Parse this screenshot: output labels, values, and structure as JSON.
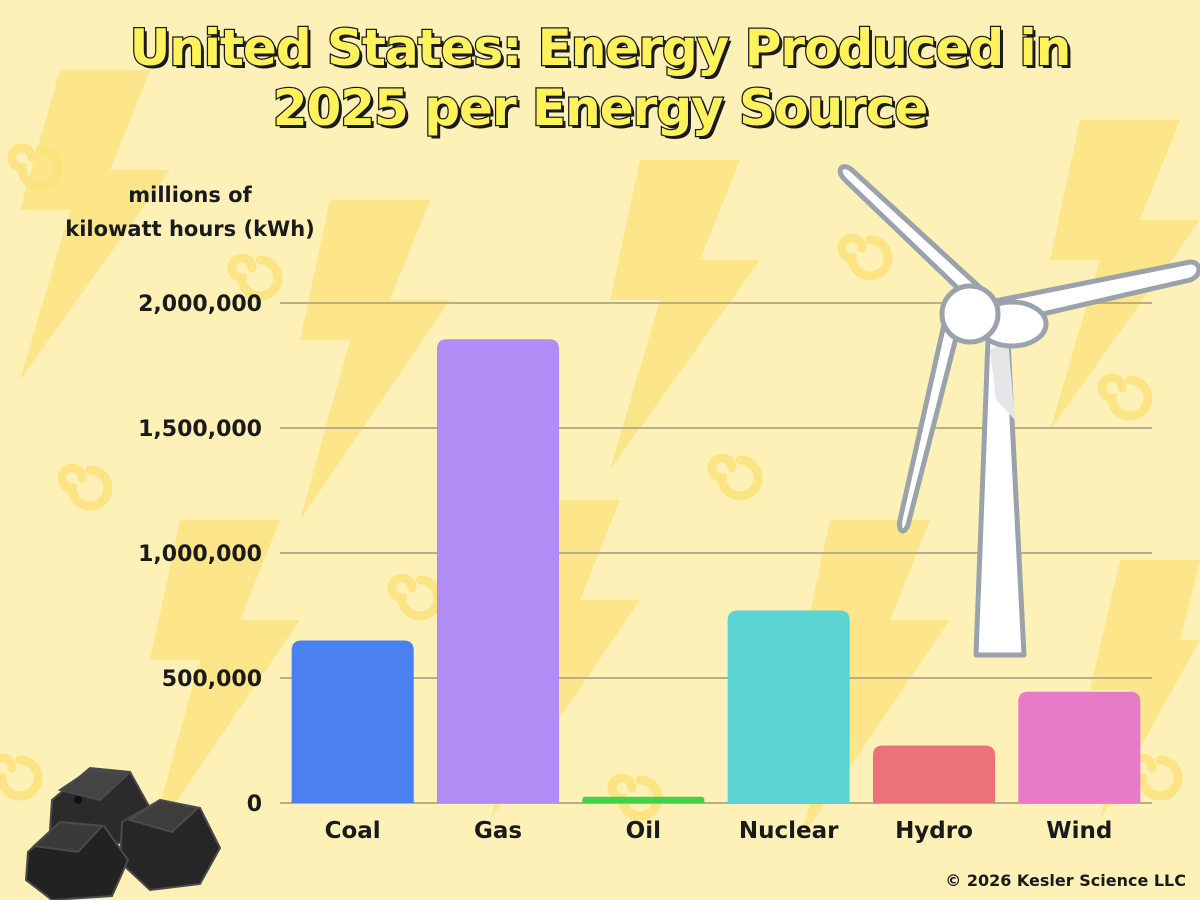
{
  "title": {
    "line1": "United States: Energy Produced in",
    "line2": "2025 per Energy Source"
  },
  "y_axis_label": {
    "line1": "millions of",
    "line2": "kilowatt hours (kWh)"
  },
  "copyright": {
    "symbol": "©",
    "text": "2026 Kesler Science LLC"
  },
  "illustrations": {
    "wind_turbine": "wind-turbine-illustration",
    "coal": "coal-lumps-illustration"
  },
  "chart_data": {
    "type": "bar",
    "title": "United States: Energy Produced in 2025 per Energy Source",
    "xlabel": "",
    "ylabel": "millions of kilowatt hours (kWh)",
    "categories": [
      "Coal",
      "Gas",
      "Oil",
      "Nuclear",
      "Hydro",
      "Wind"
    ],
    "values": [
      650000,
      1855000,
      25000,
      770000,
      230000,
      445000
    ],
    "colors": [
      "#4a80f0",
      "#b08cf4",
      "#3fd44a",
      "#5cd4d4",
      "#ec7279",
      "#e87bc6"
    ],
    "ylim": [
      0,
      2000000
    ],
    "yticks": [
      0,
      500000,
      1000000,
      1500000,
      2000000
    ],
    "ytick_labels": [
      "0",
      "500,000",
      "1,000,000",
      "1,500,000",
      "2,000,000"
    ],
    "grid": true,
    "legend": "none"
  }
}
